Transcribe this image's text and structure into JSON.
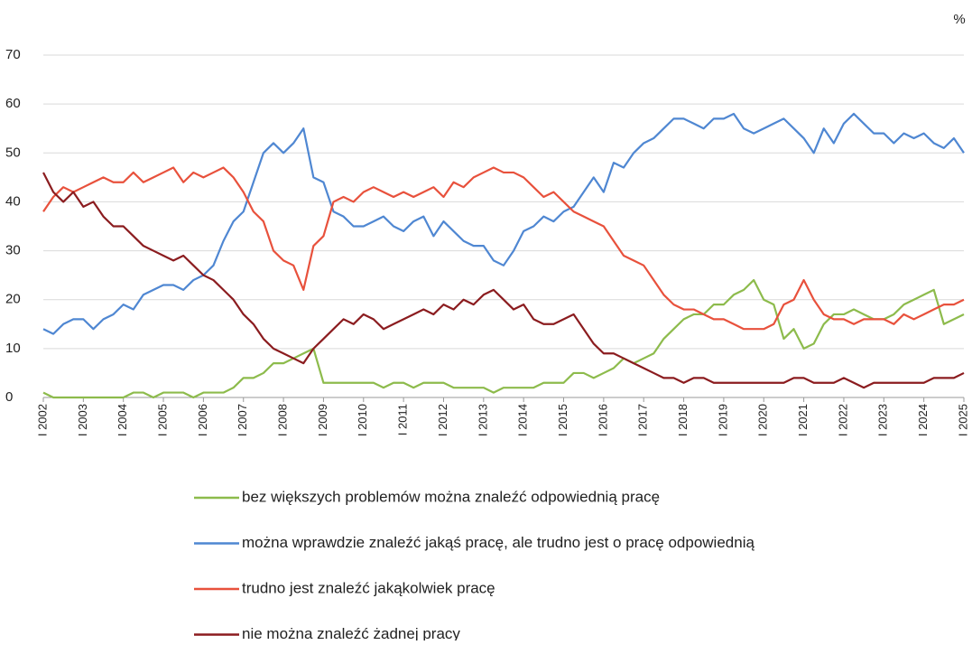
{
  "chart_data": {
    "type": "line",
    "ylabel": "%",
    "categories": [
      "I 2002",
      null,
      null,
      null,
      "I 2003",
      null,
      null,
      null,
      "I 2004",
      null,
      null,
      null,
      "I 2005",
      null,
      null,
      null,
      "I 2006",
      null,
      null,
      null,
      "I 2007",
      null,
      null,
      null,
      "I 2008",
      null,
      null,
      null,
      "I 2009",
      null,
      null,
      null,
      "I 2010",
      null,
      null,
      null,
      "I 2011",
      null,
      null,
      null,
      "I 2012",
      null,
      null,
      null,
      "I 2013",
      null,
      null,
      null,
      "I 2014",
      null,
      null,
      null,
      "I 2015",
      null,
      null,
      null,
      "I 2016",
      null,
      null,
      null,
      "I 2017",
      null,
      null,
      null,
      "I 2018",
      null,
      null,
      null,
      "I 2019",
      null,
      null,
      null,
      "I 2020",
      null,
      null,
      null,
      "I 2021",
      null,
      null,
      null,
      "I 2022",
      null,
      null,
      null,
      "I 2023",
      null,
      null,
      null,
      "I 2024",
      null,
      null,
      null,
      "I 2025"
    ],
    "ylim": [
      0,
      70
    ],
    "yticks": [
      0,
      10,
      20,
      30,
      40,
      50,
      60,
      70
    ],
    "grid": true,
    "series": [
      {
        "name": "bez większych problemów można znaleźć odpowiednią pracę",
        "color": "#8dbb4c",
        "values": [
          1,
          0,
          0,
          0,
          0,
          0,
          0,
          0,
          0,
          1,
          1,
          0,
          1,
          1,
          1,
          0,
          1,
          1,
          1,
          2,
          4,
          4,
          5,
          7,
          7,
          8,
          9,
          10,
          3,
          3,
          3,
          3,
          3,
          3,
          2,
          3,
          3,
          2,
          3,
          3,
          3,
          2,
          2,
          2,
          2,
          1,
          2,
          2,
          2,
          2,
          3,
          3,
          3,
          5,
          5,
          4,
          5,
          6,
          8,
          7,
          8,
          9,
          12,
          14,
          16,
          17,
          17,
          19,
          19,
          21,
          22,
          24,
          20,
          19,
          12,
          14,
          10,
          11,
          15,
          17,
          17,
          18,
          17,
          16,
          16,
          17,
          19,
          20,
          21,
          22,
          15,
          16,
          17
        ]
      },
      {
        "name": "można wprawdzie znaleźć jakąś pracę, ale trudno jest o pracę odpowiednią",
        "color": "#4f87d2",
        "values": [
          14,
          13,
          15,
          16,
          16,
          14,
          16,
          17,
          19,
          18,
          21,
          22,
          23,
          23,
          22,
          24,
          25,
          27,
          32,
          36,
          38,
          44,
          50,
          52,
          50,
          52,
          55,
          45,
          44,
          38,
          37,
          35,
          35,
          36,
          37,
          35,
          34,
          36,
          37,
          33,
          36,
          34,
          32,
          31,
          31,
          28,
          27,
          30,
          34,
          35,
          37,
          36,
          38,
          39,
          42,
          45,
          42,
          48,
          47,
          50,
          52,
          53,
          55,
          57,
          57,
          56,
          55,
          57,
          57,
          58,
          55,
          54,
          55,
          56,
          57,
          55,
          53,
          50,
          55,
          52,
          56,
          58,
          56,
          54,
          54,
          52,
          54,
          53,
          54,
          52,
          51,
          53,
          50
        ]
      },
      {
        "name": "trudno jest znaleźć jakąkolwiek pracę",
        "color": "#e8513c",
        "values": [
          38,
          41,
          43,
          42,
          43,
          44,
          45,
          44,
          44,
          46,
          44,
          45,
          46,
          47,
          44,
          46,
          45,
          46,
          47,
          45,
          42,
          38,
          36,
          30,
          28,
          27,
          22,
          31,
          33,
          40,
          41,
          40,
          42,
          43,
          42,
          41,
          42,
          41,
          42,
          43,
          41,
          44,
          43,
          45,
          46,
          47,
          46,
          46,
          45,
          43,
          41,
          42,
          40,
          38,
          37,
          36,
          35,
          32,
          29,
          28,
          27,
          24,
          21,
          19,
          18,
          18,
          17,
          16,
          16,
          15,
          14,
          14,
          14,
          15,
          19,
          20,
          24,
          20,
          17,
          16,
          16,
          15,
          16,
          16,
          16,
          15,
          17,
          16,
          17,
          18,
          19,
          19,
          20
        ]
      },
      {
        "name": "nie można znaleźć żadnej pracy",
        "color": "#8b1c1f",
        "values": [
          46,
          42,
          40,
          42,
          39,
          40,
          37,
          35,
          35,
          33,
          31,
          30,
          29,
          28,
          29,
          27,
          25,
          24,
          22,
          20,
          17,
          15,
          12,
          10,
          9,
          8,
          7,
          10,
          12,
          14,
          16,
          15,
          17,
          16,
          14,
          15,
          16,
          17,
          18,
          17,
          19,
          18,
          20,
          19,
          21,
          22,
          20,
          18,
          19,
          16,
          15,
          15,
          16,
          17,
          14,
          11,
          9,
          9,
          8,
          7,
          6,
          5,
          4,
          4,
          3,
          4,
          4,
          3,
          3,
          3,
          3,
          3,
          3,
          3,
          3,
          4,
          4,
          3,
          3,
          3,
          4,
          3,
          2,
          3,
          3,
          3,
          3,
          3,
          3,
          4,
          4,
          4,
          5
        ]
      }
    ]
  }
}
